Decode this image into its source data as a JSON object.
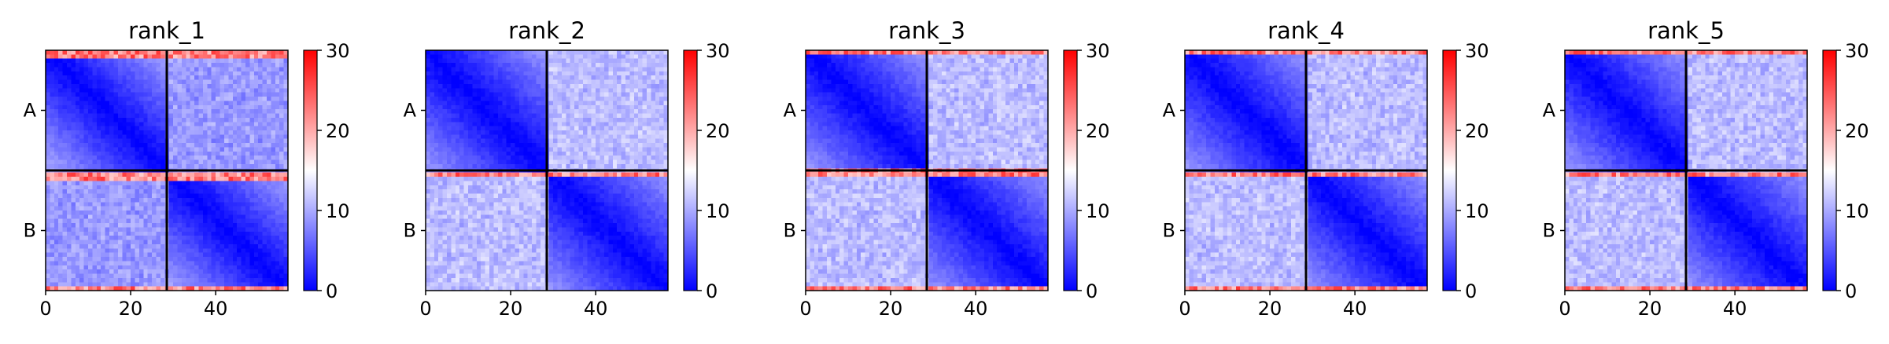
{
  "figure": {
    "colormap": {
      "name": "bwr",
      "stops": [
        "#0000ff",
        "#ffffff",
        "#ff0000"
      ]
    },
    "border_color": "#000000"
  },
  "chart_data": [
    {
      "type": "heatmap",
      "title": "rank_1",
      "xlim": [
        0,
        57
      ],
      "x_ticks": [
        "0",
        "20",
        "40"
      ],
      "x_tick_values": [
        0,
        20,
        40
      ],
      "y_ticks": [
        "A",
        "B"
      ],
      "block_boundary": 28.5,
      "clim": [
        0,
        30
      ],
      "colorbar_ticks": [
        "0",
        "10",
        "20",
        "30"
      ],
      "colorbar_tick_values": [
        0,
        10,
        20,
        30
      ],
      "grid": false,
      "pattern": {
        "intra_block_diagonal": 0,
        "intra_block_far_corner": 10,
        "inter_block_typical": 9,
        "bright_edge_rows": "top rows of each block near 27"
      }
    },
    {
      "type": "heatmap",
      "title": "rank_2",
      "xlim": [
        0,
        57
      ],
      "x_ticks": [
        "0",
        "20",
        "40"
      ],
      "x_tick_values": [
        0,
        20,
        40
      ],
      "y_ticks": [
        "A",
        "B"
      ],
      "block_boundary": 28.5,
      "clim": [
        0,
        30
      ],
      "colorbar_ticks": [
        "0",
        "10",
        "20",
        "30"
      ],
      "colorbar_tick_values": [
        0,
        10,
        20,
        30
      ],
      "grid": false,
      "pattern": {
        "intra_block_diagonal": 0,
        "intra_block_far_corner": 9,
        "inter_block_typical": 11,
        "bright_edge_rows": "first row of lower block near 26"
      }
    },
    {
      "type": "heatmap",
      "title": "rank_3",
      "xlim": [
        0,
        57
      ],
      "x_ticks": [
        "0",
        "20",
        "40"
      ],
      "x_tick_values": [
        0,
        20,
        40
      ],
      "y_ticks": [
        "A",
        "B"
      ],
      "block_boundary": 28.5,
      "clim": [
        0,
        30
      ],
      "colorbar_ticks": [
        "0",
        "10",
        "20",
        "30"
      ],
      "colorbar_tick_values": [
        0,
        10,
        20,
        30
      ],
      "grid": false,
      "pattern": {
        "intra_block_diagonal": 0,
        "intra_block_far_corner": 9,
        "inter_block_typical": 11,
        "bright_edge_rows": "top rows near 26"
      }
    },
    {
      "type": "heatmap",
      "title": "rank_4",
      "xlim": [
        0,
        57
      ],
      "x_ticks": [
        "0",
        "20",
        "40"
      ],
      "x_tick_values": [
        0,
        20,
        40
      ],
      "y_ticks": [
        "A",
        "B"
      ],
      "block_boundary": 28.5,
      "clim": [
        0,
        30
      ],
      "colorbar_ticks": [
        "0",
        "10",
        "20",
        "30"
      ],
      "colorbar_tick_values": [
        0,
        10,
        20,
        30
      ],
      "grid": false,
      "pattern": {
        "intra_block_diagonal": 0,
        "intra_block_far_corner": 9,
        "inter_block_typical": 11,
        "bright_edge_rows": "bottom row near 25"
      }
    },
    {
      "type": "heatmap",
      "title": "rank_5",
      "xlim": [
        0,
        57
      ],
      "x_ticks": [
        "0",
        "20",
        "40"
      ],
      "x_tick_values": [
        0,
        20,
        40
      ],
      "y_ticks": [
        "A",
        "B"
      ],
      "block_boundary": 28.5,
      "clim": [
        0,
        30
      ],
      "colorbar_ticks": [
        "0",
        "10",
        "20",
        "30"
      ],
      "colorbar_tick_values": [
        0,
        10,
        20,
        30
      ],
      "grid": false,
      "pattern": {
        "intra_block_diagonal": 0,
        "intra_block_far_corner": 9,
        "inter_block_typical": 11,
        "bright_edge_rows": "top rows near 25"
      }
    }
  ]
}
